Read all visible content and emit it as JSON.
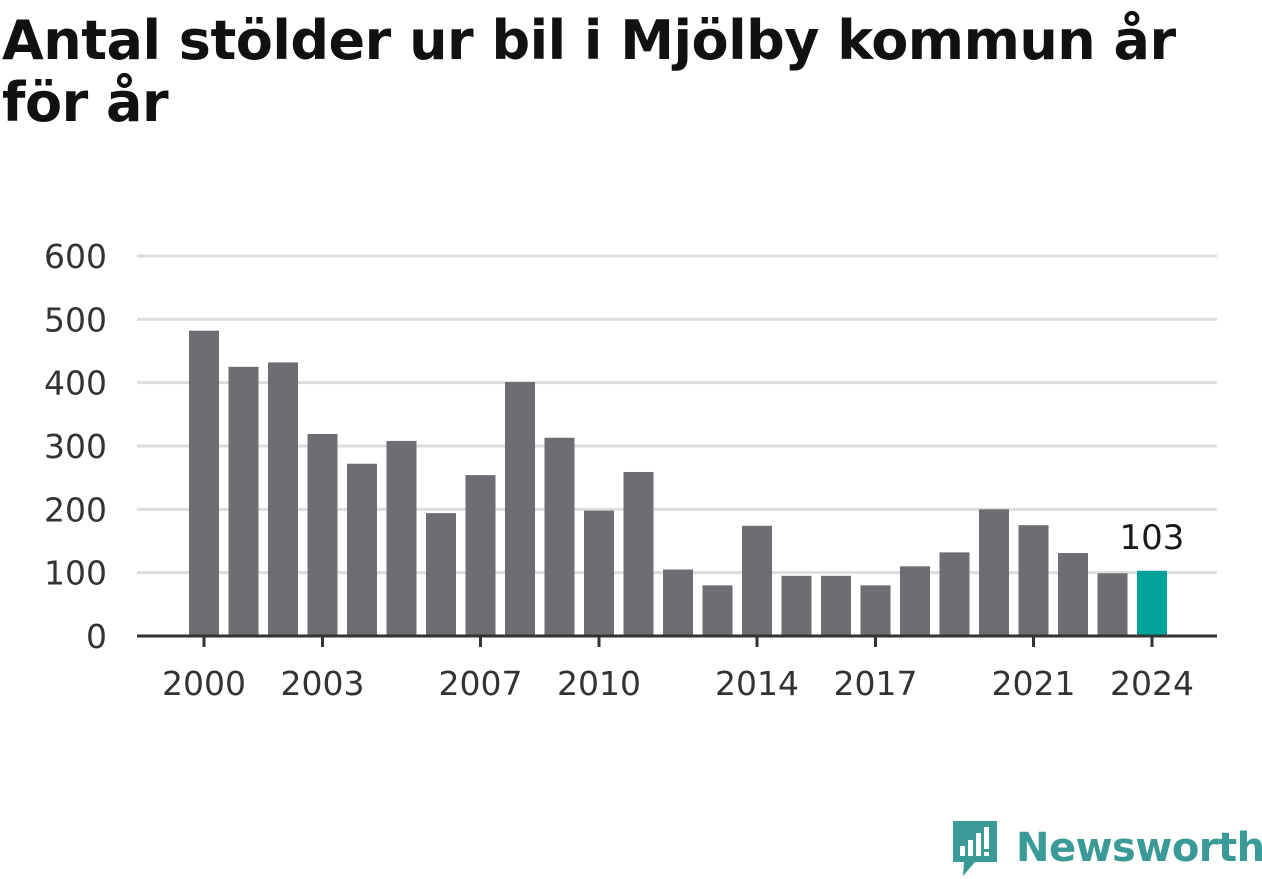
{
  "title": "Antal stölder ur bil i Mjölby kommun år för år",
  "brand": {
    "name": "Newsworthy",
    "color": "#3a9a97"
  },
  "colors": {
    "bar": "#6e6d73",
    "highlight": "#00a29a",
    "grid": "#dddddd",
    "axis": "#333333"
  },
  "chart_data": {
    "type": "bar",
    "categories": [
      "2000",
      "2001",
      "2002",
      "2003",
      "2004",
      "2005",
      "2006",
      "2007",
      "2008",
      "2009",
      "2010",
      "2011",
      "2012",
      "2013",
      "2014",
      "2015",
      "2016",
      "2017",
      "2018",
      "2019",
      "2020",
      "2021",
      "2022",
      "2023",
      "2024"
    ],
    "values": [
      482,
      425,
      432,
      319,
      272,
      308,
      194,
      254,
      401,
      313,
      198,
      259,
      105,
      80,
      174,
      95,
      95,
      80,
      110,
      132,
      200,
      175,
      131,
      99,
      103
    ],
    "x_tick_labels": [
      "2000",
      "2003",
      "2007",
      "2010",
      "2014",
      "2017",
      "2021",
      "2024"
    ],
    "y_ticks": [
      0,
      100,
      200,
      300,
      400,
      500,
      600
    ],
    "ylim": [
      0,
      600
    ],
    "highlight": {
      "category": "2024",
      "label": "103"
    },
    "grid": true,
    "xlabel": "",
    "ylabel": ""
  }
}
